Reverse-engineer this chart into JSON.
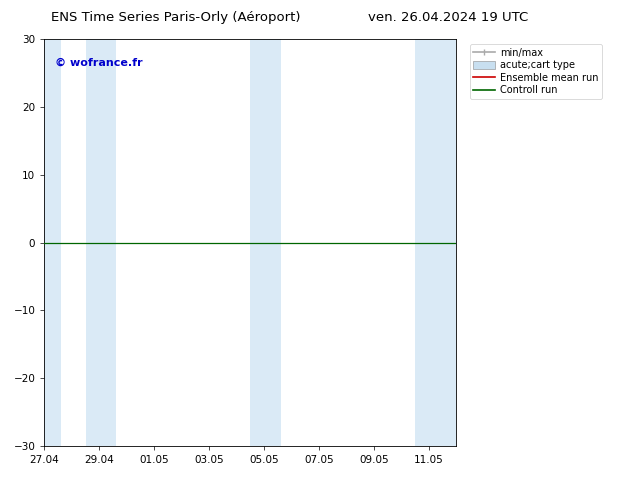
{
  "title_left": "ENS Time Series Paris-Orly (Aéroport)",
  "title_right": "ven. 26.04.2024 19 UTC",
  "watermark": "© wofrance.fr",
  "watermark_color": "#0000cc",
  "ylim": [
    -30,
    30
  ],
  "yticks": [
    -30,
    -20,
    -10,
    0,
    10,
    20,
    30
  ],
  "background_color": "#ffffff",
  "plot_bg_color": "#ffffff",
  "x_start_num": 0,
  "x_end_num": 15,
  "xtick_labels": [
    "27.04",
    "29.04",
    "01.05",
    "03.05",
    "05.05",
    "07.05",
    "09.05",
    "11.05"
  ],
  "xtick_positions": [
    0,
    2,
    4,
    6,
    8,
    10,
    12,
    14
  ],
  "zero_line_color": "#006600",
  "zero_line_y": 0,
  "shaded_bands": [
    {
      "xmin": -0.1,
      "xmax": 0.6,
      "color": "#daeaf6"
    },
    {
      "xmin": 1.5,
      "xmax": 2.6,
      "color": "#daeaf6"
    },
    {
      "xmin": 7.5,
      "xmax": 8.6,
      "color": "#daeaf6"
    },
    {
      "xmin": 13.5,
      "xmax": 15.1,
      "color": "#daeaf6"
    }
  ],
  "legend_items": [
    {
      "label": "min/max",
      "color": "#aaaaaa",
      "style": "errorbar"
    },
    {
      "label": "acute;cart type",
      "color": "#c8dff0",
      "style": "bar"
    },
    {
      "label": "Ensemble mean run",
      "color": "#cc0000",
      "style": "line"
    },
    {
      "label": "Controll run",
      "color": "#006600",
      "style": "line"
    }
  ],
  "spine_color": "#000000",
  "font_size_title": 9.5,
  "font_size_legend": 7,
  "font_size_tick": 7.5,
  "font_size_watermark": 8
}
